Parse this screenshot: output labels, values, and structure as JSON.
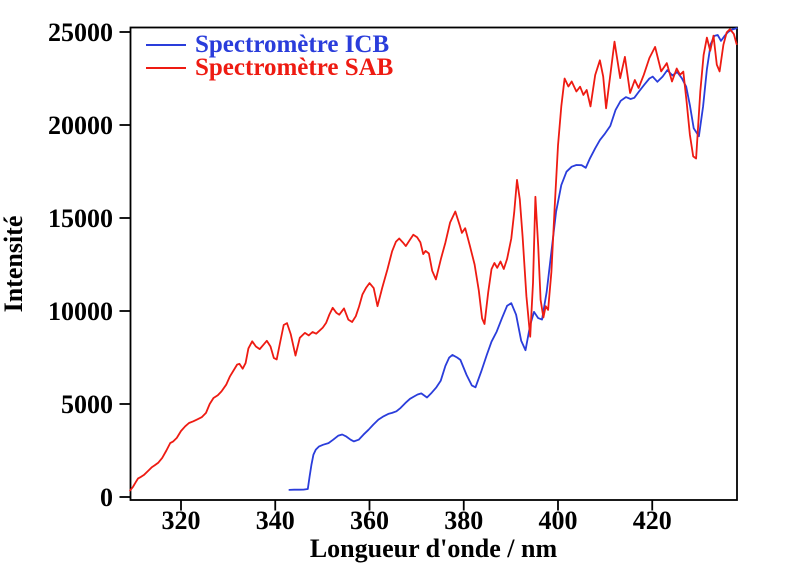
{
  "chart_data": {
    "type": "line",
    "title": "",
    "xlabel": "Longueur d'onde / nm",
    "ylabel": "Intensité",
    "xlim": [
      309.2,
      438
    ],
    "ylim": [
      0,
      25300
    ],
    "x_ticks": [
      320,
      340,
      360,
      380,
      400,
      420
    ],
    "y_ticks": [
      0,
      5000,
      10000,
      15000,
      20000,
      25000
    ],
    "grid": false,
    "legend_position": "top-left-inside",
    "background": "#ffffff",
    "axis_color": "#000000",
    "series": [
      {
        "name": "Spectromètre ICB",
        "color": "#2a3ddb",
        "points": [
          [
            343,
            380
          ],
          [
            344,
            390
          ],
          [
            345.1,
            395
          ],
          [
            346,
            400
          ],
          [
            346.9,
            430
          ],
          [
            347.3,
            1100
          ],
          [
            347.7,
            1750
          ],
          [
            348.1,
            2270
          ],
          [
            348.6,
            2550
          ],
          [
            349.3,
            2720
          ],
          [
            350.2,
            2810
          ],
          [
            351.3,
            2900
          ],
          [
            352.3,
            3080
          ],
          [
            353.4,
            3300
          ],
          [
            354.2,
            3360
          ],
          [
            355.1,
            3250
          ],
          [
            356,
            3080
          ],
          [
            356.7,
            2990
          ],
          [
            357.7,
            3080
          ],
          [
            358.7,
            3350
          ],
          [
            359.8,
            3620
          ],
          [
            360.8,
            3890
          ],
          [
            361.9,
            4160
          ],
          [
            363,
            4340
          ],
          [
            364.1,
            4480
          ],
          [
            364.8,
            4520
          ],
          [
            365.7,
            4610
          ],
          [
            366.6,
            4790
          ],
          [
            367.6,
            5050
          ],
          [
            368.6,
            5280
          ],
          [
            369.4,
            5400
          ],
          [
            370.2,
            5510
          ],
          [
            371,
            5570
          ],
          [
            372.2,
            5350
          ],
          [
            373.2,
            5610
          ],
          [
            374.2,
            5900
          ],
          [
            375.1,
            6250
          ],
          [
            376.1,
            7050
          ],
          [
            376.9,
            7490
          ],
          [
            377.6,
            7640
          ],
          [
            378.6,
            7500
          ],
          [
            379.3,
            7370
          ],
          [
            380.6,
            6560
          ],
          [
            381.7,
            6000
          ],
          [
            382.5,
            5900
          ],
          [
            383.7,
            6740
          ],
          [
            384.9,
            7640
          ],
          [
            385.9,
            8350
          ],
          [
            387,
            8890
          ],
          [
            388.1,
            9610
          ],
          [
            389.2,
            10280
          ],
          [
            390.1,
            10420
          ],
          [
            391.1,
            9800
          ],
          [
            392.2,
            8400
          ],
          [
            393.1,
            7890
          ],
          [
            394.1,
            9250
          ],
          [
            394.9,
            9950
          ],
          [
            395.8,
            9620
          ],
          [
            396.6,
            9540
          ],
          [
            397.6,
            11040
          ],
          [
            398.6,
            13190
          ],
          [
            399.6,
            15340
          ],
          [
            400.7,
            16770
          ],
          [
            401.8,
            17490
          ],
          [
            402.9,
            17760
          ],
          [
            403.9,
            17850
          ],
          [
            405,
            17840
          ],
          [
            405.9,
            17700
          ],
          [
            406.8,
            18210
          ],
          [
            407.9,
            18750
          ],
          [
            408.9,
            19190
          ],
          [
            410,
            19550
          ],
          [
            411.1,
            19950
          ],
          [
            412.2,
            20800
          ],
          [
            413.3,
            21300
          ],
          [
            414.4,
            21500
          ],
          [
            415.4,
            21400
          ],
          [
            416.2,
            21460
          ],
          [
            417.2,
            21800
          ],
          [
            418.3,
            22160
          ],
          [
            419.4,
            22500
          ],
          [
            420.1,
            22600
          ],
          [
            421.1,
            22320
          ],
          [
            422.2,
            22600
          ],
          [
            423.2,
            22950
          ],
          [
            424.3,
            22660
          ],
          [
            425.3,
            22850
          ],
          [
            426.3,
            22510
          ],
          [
            427.2,
            22060
          ],
          [
            428,
            21060
          ],
          [
            428.8,
            19830
          ],
          [
            429.9,
            19400
          ],
          [
            430.8,
            21000
          ],
          [
            431.6,
            23000
          ],
          [
            432.4,
            24350
          ],
          [
            433.2,
            24790
          ],
          [
            433.9,
            24840
          ],
          [
            434.6,
            24520
          ],
          [
            435.4,
            24800
          ],
          [
            436.1,
            25000
          ],
          [
            436.9,
            25130
          ],
          [
            437.9,
            25200
          ]
        ]
      },
      {
        "name": "Spectromètre SAB",
        "color": "#ee1b12",
        "points": [
          [
            309.2,
            350
          ],
          [
            309.8,
            540
          ],
          [
            310.4,
            800
          ],
          [
            310.9,
            1000
          ],
          [
            311.5,
            1080
          ],
          [
            312.2,
            1200
          ],
          [
            313,
            1400
          ],
          [
            313.8,
            1600
          ],
          [
            314.4,
            1700
          ],
          [
            315.2,
            1850
          ],
          [
            316,
            2100
          ],
          [
            316.9,
            2500
          ],
          [
            317.7,
            2900
          ],
          [
            318.3,
            2980
          ],
          [
            319.1,
            3180
          ],
          [
            320,
            3550
          ],
          [
            320.9,
            3800
          ],
          [
            321.7,
            3980
          ],
          [
            322.6,
            4070
          ],
          [
            323.5,
            4180
          ],
          [
            324.4,
            4290
          ],
          [
            325.3,
            4520
          ],
          [
            326.1,
            5000
          ],
          [
            326.9,
            5320
          ],
          [
            327.8,
            5470
          ],
          [
            328.6,
            5680
          ],
          [
            329.6,
            6040
          ],
          [
            330.4,
            6490
          ],
          [
            331.1,
            6780
          ],
          [
            331.9,
            7120
          ],
          [
            332.4,
            7160
          ],
          [
            333.1,
            6900
          ],
          [
            333.7,
            7200
          ],
          [
            334.3,
            7990
          ],
          [
            335.1,
            8370
          ],
          [
            335.9,
            8090
          ],
          [
            336.7,
            7950
          ],
          [
            337.5,
            8190
          ],
          [
            338.2,
            8400
          ],
          [
            339,
            8090
          ],
          [
            339.7,
            7480
          ],
          [
            340.3,
            7400
          ],
          [
            341,
            8280
          ],
          [
            341.8,
            9250
          ],
          [
            342.5,
            9350
          ],
          [
            343.3,
            8740
          ],
          [
            344.3,
            7600
          ],
          [
            345.2,
            8560
          ],
          [
            346.3,
            8820
          ],
          [
            347.1,
            8690
          ],
          [
            347.9,
            8870
          ],
          [
            348.7,
            8780
          ],
          [
            349.4,
            8940
          ],
          [
            350.1,
            9110
          ],
          [
            350.8,
            9360
          ],
          [
            351.5,
            9810
          ],
          [
            352.2,
            10170
          ],
          [
            353,
            9900
          ],
          [
            353.6,
            9800
          ],
          [
            354.6,
            10140
          ],
          [
            355.5,
            9540
          ],
          [
            356.3,
            9410
          ],
          [
            357.1,
            9720
          ],
          [
            357.8,
            10250
          ],
          [
            358.5,
            10880
          ],
          [
            359.3,
            11260
          ],
          [
            360,
            11500
          ],
          [
            360.9,
            11230
          ],
          [
            361.7,
            10260
          ],
          [
            362.7,
            11240
          ],
          [
            363.8,
            12230
          ],
          [
            364.8,
            13210
          ],
          [
            365.6,
            13720
          ],
          [
            366.3,
            13900
          ],
          [
            367.1,
            13680
          ],
          [
            367.7,
            13490
          ],
          [
            368.5,
            13800
          ],
          [
            369.3,
            14100
          ],
          [
            370.1,
            13960
          ],
          [
            370.8,
            13690
          ],
          [
            371.4,
            13060
          ],
          [
            371.9,
            13230
          ],
          [
            372.6,
            13090
          ],
          [
            373.3,
            12160
          ],
          [
            374.1,
            11700
          ],
          [
            375.2,
            12840
          ],
          [
            376.1,
            13680
          ],
          [
            377.1,
            14760
          ],
          [
            378.2,
            15350
          ],
          [
            379.2,
            14560
          ],
          [
            379.6,
            14200
          ],
          [
            380.3,
            14450
          ],
          [
            381.3,
            13500
          ],
          [
            382.3,
            12500
          ],
          [
            383.2,
            11100
          ],
          [
            383.9,
            9600
          ],
          [
            384.4,
            9300
          ],
          [
            385.2,
            11000
          ],
          [
            385.9,
            12250
          ],
          [
            386.5,
            12580
          ],
          [
            387.1,
            12320
          ],
          [
            387.8,
            12660
          ],
          [
            388.5,
            12260
          ],
          [
            389.2,
            12800
          ],
          [
            390.1,
            13900
          ],
          [
            390.7,
            15300
          ],
          [
            391.3,
            17050
          ],
          [
            391.9,
            16000
          ],
          [
            392.5,
            14000
          ],
          [
            393.3,
            10800
          ],
          [
            394.1,
            8620
          ],
          [
            394.7,
            11500
          ],
          [
            395.2,
            16140
          ],
          [
            395.8,
            13500
          ],
          [
            396.3,
            10600
          ],
          [
            396.9,
            9650
          ],
          [
            397.4,
            10260
          ],
          [
            397.9,
            10060
          ],
          [
            398.6,
            12100
          ],
          [
            399.3,
            15600
          ],
          [
            400,
            18900
          ],
          [
            400.7,
            21000
          ],
          [
            401.4,
            22500
          ],
          [
            402.2,
            22070
          ],
          [
            402.9,
            22340
          ],
          [
            403.9,
            21800
          ],
          [
            404.7,
            22060
          ],
          [
            405.4,
            21620
          ],
          [
            406.1,
            21880
          ],
          [
            406.9,
            21000
          ],
          [
            407.9,
            22690
          ],
          [
            408.9,
            23480
          ],
          [
            409.6,
            22600
          ],
          [
            410.2,
            20900
          ],
          [
            411.2,
            22900
          ],
          [
            412,
            24480
          ],
          [
            413.2,
            22520
          ],
          [
            414.2,
            23660
          ],
          [
            415.3,
            21720
          ],
          [
            416.3,
            22420
          ],
          [
            417.1,
            21990
          ],
          [
            418.2,
            22700
          ],
          [
            419.4,
            23600
          ],
          [
            420.6,
            24200
          ],
          [
            421.9,
            22880
          ],
          [
            423.1,
            23330
          ],
          [
            424.2,
            22340
          ],
          [
            425.2,
            23040
          ],
          [
            425.9,
            22700
          ],
          [
            426.6,
            22870
          ],
          [
            427.3,
            21260
          ],
          [
            428,
            19470
          ],
          [
            428.7,
            18310
          ],
          [
            429.3,
            18200
          ],
          [
            430.2,
            21800
          ],
          [
            430.9,
            23760
          ],
          [
            431.6,
            24700
          ],
          [
            432.3,
            23990
          ],
          [
            433,
            24800
          ],
          [
            433.7,
            23240
          ],
          [
            434.3,
            22880
          ],
          [
            435.1,
            24310
          ],
          [
            435.8,
            24980
          ],
          [
            436.5,
            25150
          ],
          [
            437.3,
            24900
          ],
          [
            437.9,
            24350
          ]
        ]
      }
    ]
  }
}
